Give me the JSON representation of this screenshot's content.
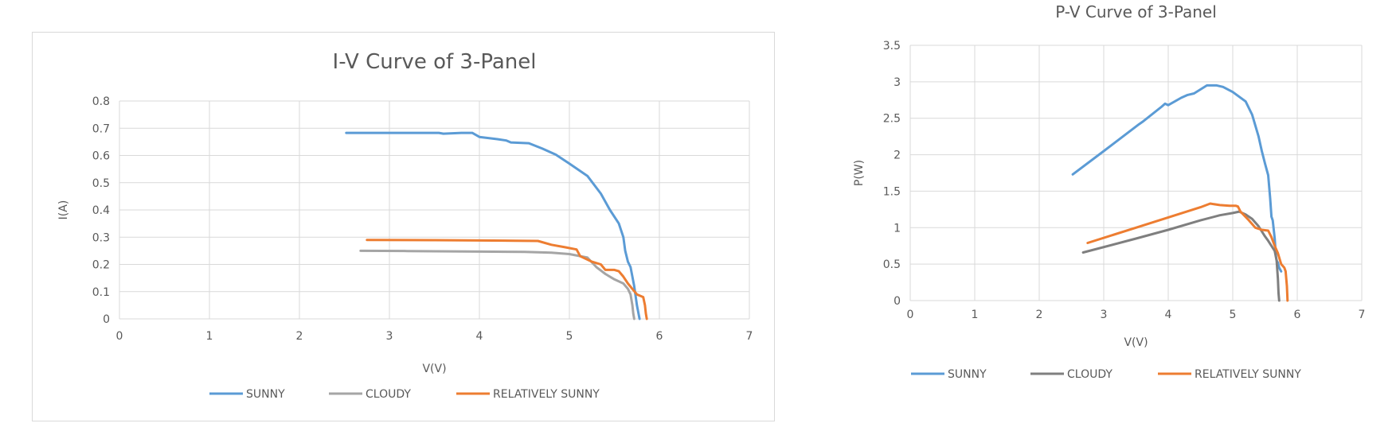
{
  "chart_data": [
    {
      "type": "line",
      "title": "I-V Curve of 3-Panel",
      "xlabel": "V(V)",
      "ylabel": "I(A)",
      "xlim": [
        0,
        7
      ],
      "ylim": [
        0,
        0.8
      ],
      "xticks": [
        "0",
        "1",
        "2",
        "3",
        "4",
        "5",
        "6",
        "7"
      ],
      "yticks": [
        "0",
        "0.1",
        "0.2",
        "0.3",
        "0.4",
        "0.5",
        "0.6",
        "0.7",
        "0.8"
      ],
      "grid": true,
      "legend": "bottom",
      "series": [
        {
          "name": "SUNNY",
          "color": "#5b9bd5",
          "x": [
            2.52,
            3.0,
            3.55,
            3.6,
            3.8,
            3.92,
            4.0,
            4.2,
            4.3,
            4.35,
            4.55,
            4.7,
            4.85,
            5.0,
            5.2,
            5.35,
            5.45,
            5.55,
            5.6,
            5.62,
            5.65,
            5.68,
            5.72,
            5.75,
            5.78
          ],
          "y": [
            0.683,
            0.683,
            0.683,
            0.68,
            0.683,
            0.683,
            0.668,
            0.66,
            0.655,
            0.648,
            0.645,
            0.625,
            0.603,
            0.57,
            0.525,
            0.46,
            0.4,
            0.35,
            0.3,
            0.25,
            0.21,
            0.19,
            0.12,
            0.05,
            0.0
          ]
        },
        {
          "name": "CLOUDY",
          "color": "#a5a5a5",
          "x": [
            2.68,
            3.2,
            4.0,
            4.5,
            4.8,
            5.0,
            5.2,
            5.3,
            5.4,
            5.5,
            5.6,
            5.65,
            5.68,
            5.7,
            5.71,
            5.72
          ],
          "y": [
            0.25,
            0.249,
            0.247,
            0.246,
            0.243,
            0.238,
            0.225,
            0.19,
            0.165,
            0.145,
            0.13,
            0.11,
            0.09,
            0.05,
            0.02,
            0.0
          ]
        },
        {
          "name": "RELATIVELY SUNNY",
          "color": "#ed7d31",
          "x": [
            2.75,
            3.5,
            4.0,
            4.4,
            4.65,
            4.8,
            4.95,
            5.08,
            5.12,
            5.25,
            5.35,
            5.4,
            5.5,
            5.55,
            5.6,
            5.65,
            5.7,
            5.75,
            5.82,
            5.84,
            5.85,
            5.86
          ],
          "y": [
            0.29,
            0.289,
            0.288,
            0.287,
            0.286,
            0.272,
            0.263,
            0.255,
            0.23,
            0.21,
            0.2,
            0.18,
            0.18,
            0.175,
            0.155,
            0.13,
            0.11,
            0.09,
            0.08,
            0.05,
            0.02,
            0.0
          ]
        }
      ]
    },
    {
      "type": "line",
      "title": "P-V Curve of 3-Panel",
      "xlabel": "V(V)",
      "ylabel": "P(W)",
      "xlim": [
        0,
        7
      ],
      "ylim": [
        0,
        3.5
      ],
      "xticks": [
        "0",
        "1",
        "2",
        "3",
        "4",
        "5",
        "6",
        "7"
      ],
      "yticks": [
        "0",
        "0.5",
        "1",
        "1.5",
        "2",
        "2.5",
        "3",
        "3.5"
      ],
      "grid": true,
      "legend": "bottom",
      "series": [
        {
          "name": "SUNNY",
          "color": "#5b9bd5",
          "x": [
            2.52,
            3.0,
            3.55,
            3.6,
            3.9,
            3.95,
            4.0,
            4.2,
            4.3,
            4.4,
            4.6,
            4.75,
            4.85,
            5.0,
            5.2,
            5.3,
            5.4,
            5.45,
            5.5,
            5.55,
            5.58,
            5.6,
            5.62,
            5.65,
            5.67,
            5.68,
            5.7,
            5.72,
            5.75
          ],
          "y": [
            1.73,
            2.05,
            2.42,
            2.45,
            2.66,
            2.7,
            2.68,
            2.78,
            2.82,
            2.84,
            2.95,
            2.95,
            2.93,
            2.86,
            2.73,
            2.55,
            2.25,
            2.05,
            1.88,
            1.72,
            1.4,
            1.15,
            1.1,
            0.85,
            0.6,
            0.55,
            0.52,
            0.45,
            0.4
          ]
        },
        {
          "name": "CLOUDY",
          "color": "#7f7f7f",
          "x": [
            2.68,
            3.5,
            4.0,
            4.5,
            4.8,
            5.0,
            5.1,
            5.2,
            5.3,
            5.4,
            5.5,
            5.55,
            5.6,
            5.65,
            5.68,
            5.7,
            5.71,
            5.72
          ],
          "y": [
            0.66,
            0.85,
            0.97,
            1.1,
            1.17,
            1.2,
            1.22,
            1.18,
            1.12,
            1.02,
            0.88,
            0.82,
            0.75,
            0.68,
            0.55,
            0.3,
            0.1,
            0.0
          ]
        },
        {
          "name": "RELATIVELY SUNNY",
          "color": "#ed7d31",
          "x": [
            2.75,
            3.5,
            4.0,
            4.5,
            4.65,
            4.8,
            4.95,
            5.05,
            5.08,
            5.12,
            5.25,
            5.35,
            5.45,
            5.55,
            5.6,
            5.65,
            5.7,
            5.75,
            5.8,
            5.82,
            5.84,
            5.85
          ],
          "y": [
            0.79,
            1.0,
            1.14,
            1.28,
            1.33,
            1.31,
            1.3,
            1.3,
            1.29,
            1.22,
            1.1,
            1.0,
            0.97,
            0.96,
            0.87,
            0.75,
            0.65,
            0.5,
            0.45,
            0.4,
            0.2,
            0.0
          ]
        }
      ]
    }
  ]
}
